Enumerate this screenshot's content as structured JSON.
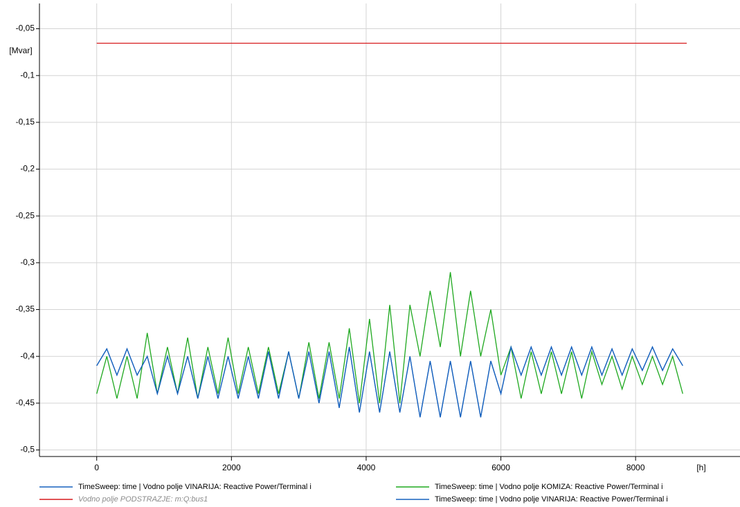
{
  "chart_data": {
    "type": "line",
    "x_unit": "[h]",
    "y_unit": "[Mvar]",
    "xlim": [
      -850,
      9550
    ],
    "ylim": [
      -0.507,
      -0.023
    ],
    "xticks": [
      0,
      2000,
      4000,
      6000,
      8000
    ],
    "yticks": [
      {
        "value": -0.05,
        "label": "-0,05"
      },
      {
        "value": -0.1,
        "label": "-0,1"
      },
      {
        "value": -0.15,
        "label": "-0,15"
      },
      {
        "value": -0.2,
        "label": "-0,2"
      },
      {
        "value": -0.25,
        "label": "-0,25"
      },
      {
        "value": -0.3,
        "label": "-0,3"
      },
      {
        "value": -0.35,
        "label": "-0,35"
      },
      {
        "value": -0.4,
        "label": "-0,4"
      },
      {
        "value": -0.45,
        "label": "-0,45"
      },
      {
        "value": -0.5,
        "label": "-0,5"
      }
    ],
    "grid": true,
    "x": [
      0,
      150,
      300,
      450,
      600,
      750,
      900,
      1050,
      1200,
      1350,
      1500,
      1650,
      1800,
      1950,
      2100,
      2250,
      2400,
      2550,
      2700,
      2850,
      3000,
      3150,
      3300,
      3450,
      3600,
      3750,
      3900,
      4050,
      4200,
      4350,
      4500,
      4650,
      4800,
      4950,
      5100,
      5250,
      5400,
      5550,
      5700,
      5850,
      6000,
      6150,
      6300,
      6450,
      6600,
      6750,
      6900,
      7050,
      7200,
      7350,
      7500,
      7650,
      7800,
      7950,
      8100,
      8250,
      8400,
      8550,
      8700
    ],
    "series": [
      {
        "name": "TimeSweep: time | Vodno polje VINARIJA: Reactive Power/Terminal i",
        "color": "#1560bd",
        "values": [
          -0.41,
          -0.392,
          -0.42,
          -0.392,
          -0.42,
          -0.4,
          -0.44,
          -0.4,
          -0.44,
          -0.4,
          -0.445,
          -0.4,
          -0.445,
          -0.4,
          -0.445,
          -0.4,
          -0.445,
          -0.395,
          -0.445,
          -0.395,
          -0.445,
          -0.395,
          -0.45,
          -0.395,
          -0.455,
          -0.39,
          -0.46,
          -0.395,
          -0.46,
          -0.395,
          -0.46,
          -0.4,
          -0.465,
          -0.405,
          -0.465,
          -0.405,
          -0.465,
          -0.405,
          -0.465,
          -0.405,
          -0.44,
          -0.39,
          -0.42,
          -0.39,
          -0.42,
          -0.39,
          -0.42,
          -0.39,
          -0.42,
          -0.39,
          -0.42,
          -0.392,
          -0.42,
          -0.392,
          -0.415,
          -0.39,
          -0.415,
          -0.392,
          -0.41
        ]
      },
      {
        "name": "Vodno polje PODSTRAZJE: m:Q:bus1",
        "color": "#d7191c",
        "label_style": "italic",
        "label_color": "#8c8c8c",
        "x": [
          0,
          8760
        ],
        "values": [
          -0.0655,
          -0.0655
        ]
      },
      {
        "name": "TimeSweep: time | Vodno polje KOMIZA: Reactive Power/Terminal i",
        "color": "#1ea81e",
        "values": [
          -0.44,
          -0.4,
          -0.445,
          -0.4,
          -0.445,
          -0.375,
          -0.44,
          -0.39,
          -0.44,
          -0.38,
          -0.445,
          -0.39,
          -0.44,
          -0.38,
          -0.44,
          -0.39,
          -0.44,
          -0.39,
          -0.44,
          -0.395,
          -0.445,
          -0.385,
          -0.445,
          -0.385,
          -0.445,
          -0.37,
          -0.45,
          -0.36,
          -0.45,
          -0.345,
          -0.45,
          -0.345,
          -0.4,
          -0.33,
          -0.39,
          -0.31,
          -0.4,
          -0.33,
          -0.4,
          -0.35,
          -0.42,
          -0.39,
          -0.445,
          -0.395,
          -0.44,
          -0.395,
          -0.44,
          -0.395,
          -0.445,
          -0.395,
          -0.43,
          -0.4,
          -0.435,
          -0.4,
          -0.43,
          -0.4,
          -0.43,
          -0.4,
          -0.44
        ]
      },
      {
        "name": "TimeSweep: time | Vodno polje VINARIJA: Reactive Power/Terminal i",
        "color": "#1560bd",
        "values": [
          -0.41,
          -0.392,
          -0.42,
          -0.392,
          -0.42,
          -0.4,
          -0.44,
          -0.4,
          -0.44,
          -0.4,
          -0.445,
          -0.4,
          -0.445,
          -0.4,
          -0.445,
          -0.4,
          -0.445,
          -0.395,
          -0.445,
          -0.395,
          -0.445,
          -0.395,
          -0.45,
          -0.395,
          -0.455,
          -0.39,
          -0.46,
          -0.395,
          -0.46,
          -0.395,
          -0.46,
          -0.4,
          -0.465,
          -0.405,
          -0.465,
          -0.405,
          -0.465,
          -0.405,
          -0.465,
          -0.405,
          -0.44,
          -0.39,
          -0.42,
          -0.39,
          -0.42,
          -0.39,
          -0.42,
          -0.39,
          -0.42,
          -0.39,
          -0.42,
          -0.392,
          -0.42,
          -0.392,
          -0.415,
          -0.39,
          -0.415,
          -0.392,
          -0.41
        ]
      }
    ]
  }
}
